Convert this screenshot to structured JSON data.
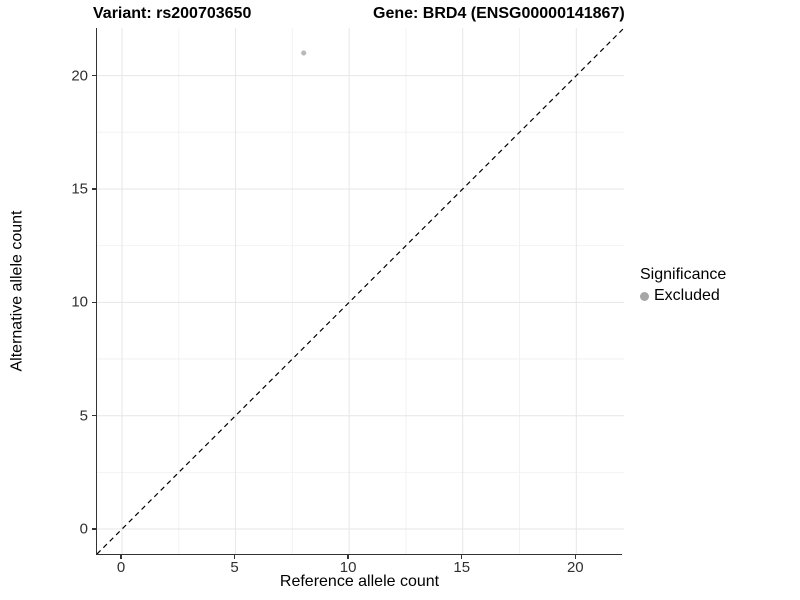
{
  "titles": {
    "variant": "Variant: rs200703650",
    "gene": "Gene: BRD4 (ENSG00000141867)"
  },
  "axes": {
    "x_label": "Reference allele count",
    "y_label": "Alternative allele count"
  },
  "legend": {
    "title": "Significance",
    "items": [
      {
        "label": "Excluded",
        "color": "#a6a6a6"
      }
    ]
  },
  "chart_data": {
    "type": "scatter",
    "title_left": "Variant: rs200703650",
    "title_right": "Gene: BRD4 (ENSG00000141867)",
    "xlabel": "Reference allele count",
    "ylabel": "Alternative allele count",
    "xlim": [
      -1.1,
      22.1
    ],
    "ylim": [
      -1.1,
      22.1
    ],
    "x_ticks": [
      0,
      5,
      10,
      15,
      20
    ],
    "y_ticks": [
      0,
      5,
      10,
      15,
      20
    ],
    "x_minor_gridlines": [
      2.5,
      7.5,
      12.5,
      17.5
    ],
    "y_minor_gridlines": [
      2.5,
      7.5,
      12.5,
      17.5
    ],
    "grid": "major+minor",
    "major_grid_color": "#e6e6e6",
    "minor_grid_color": "#f2f2f2",
    "points": [
      {
        "x": 8,
        "y": 21,
        "series": "Excluded",
        "color": "#b9b9b9",
        "r": 2.6
      }
    ],
    "reference_line": {
      "type": "identity",
      "style": "dashed",
      "color": "#000000"
    },
    "legend_position": "right"
  }
}
